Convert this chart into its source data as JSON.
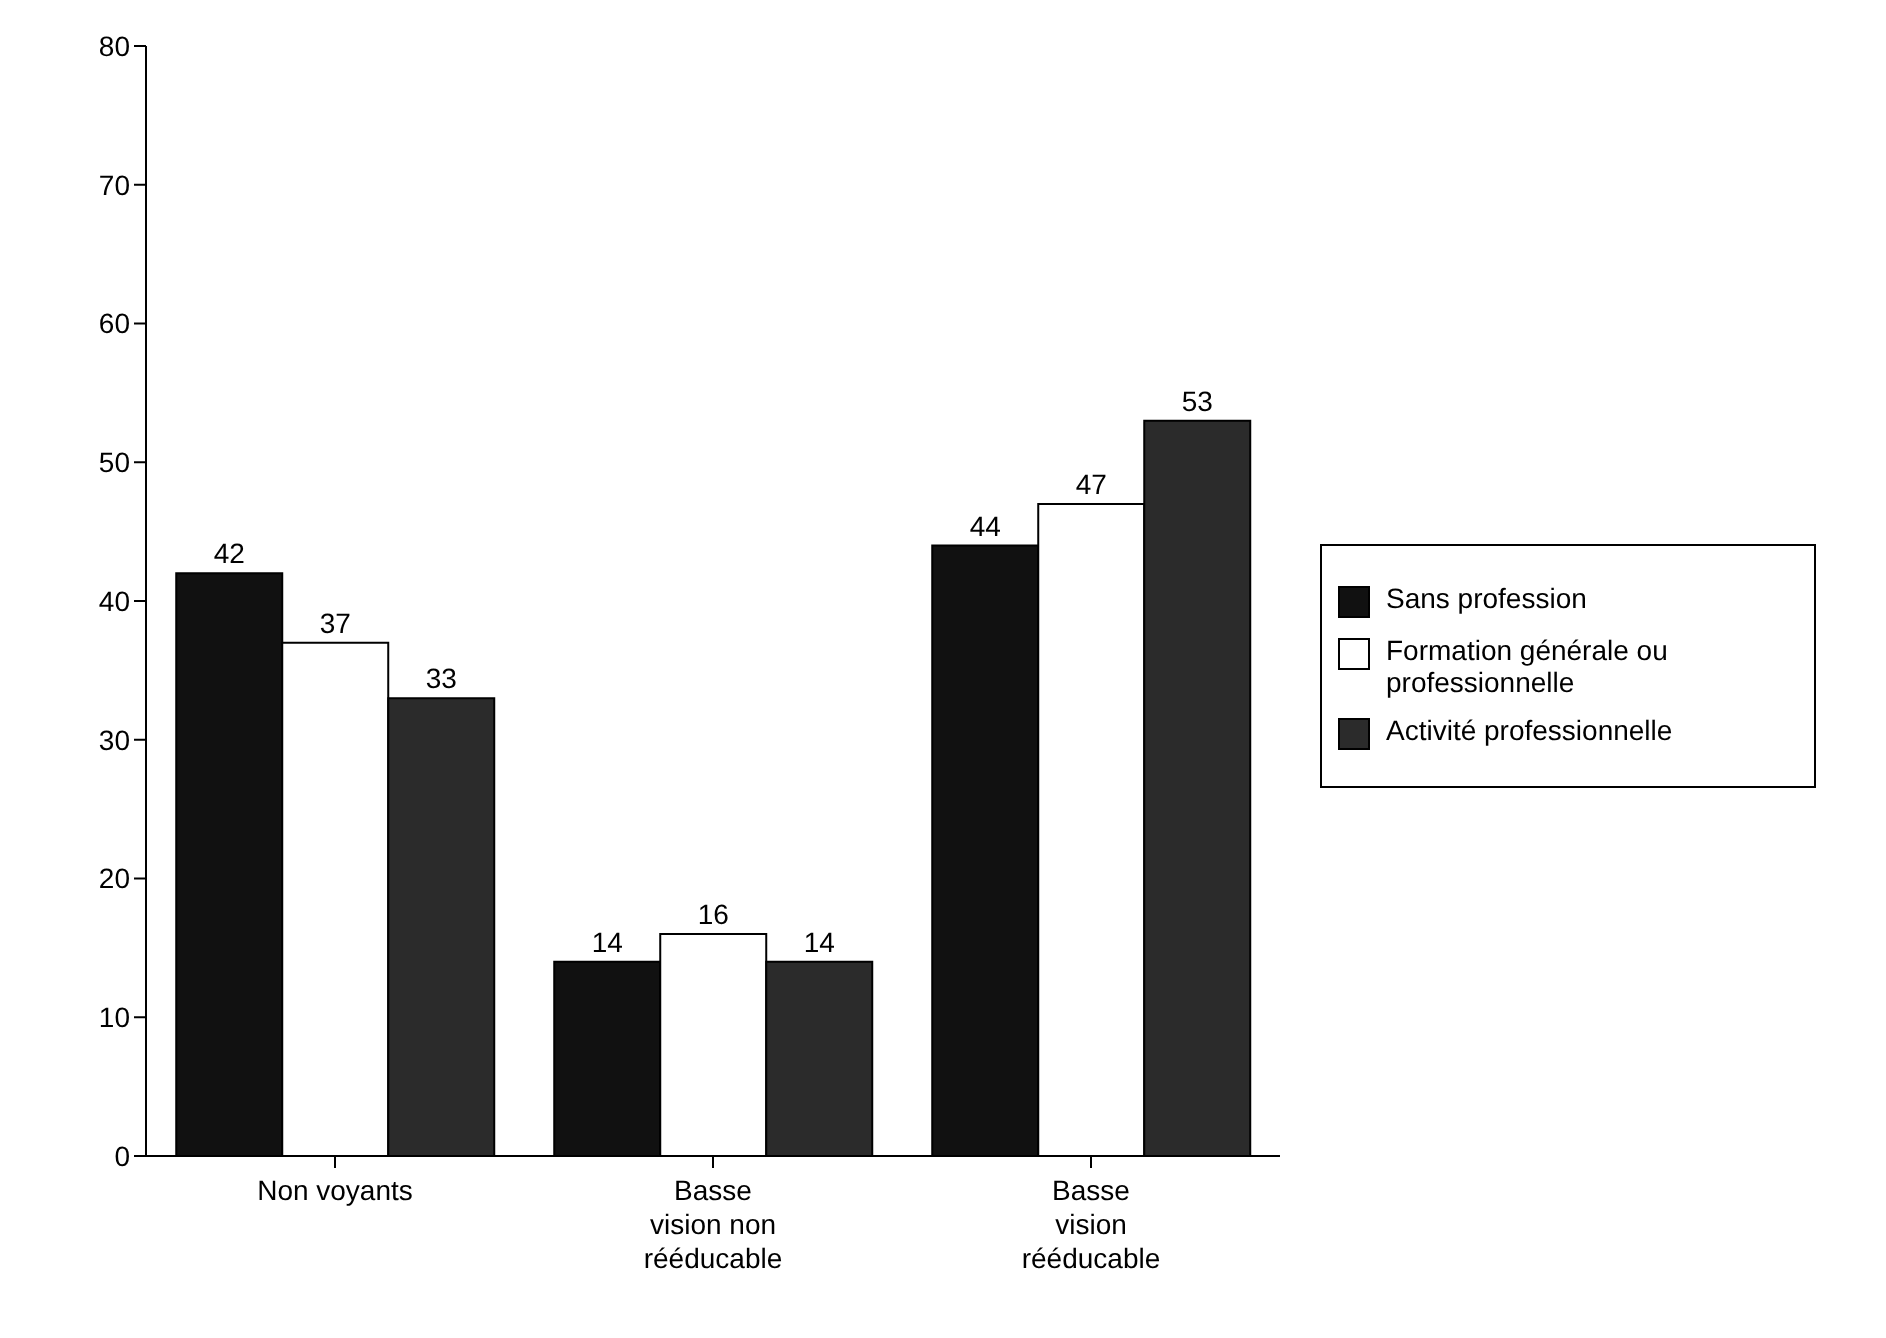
{
  "chart_data": {
    "type": "bar",
    "categories": [
      "Non voyants",
      "Basse vision non rééducable",
      "Basse vision rééducable"
    ],
    "series": [
      {
        "name": "Sans profession",
        "color": "#111111",
        "values": [
          42,
          14,
          44
        ]
      },
      {
        "name": "Formation générale ou professionnelle",
        "color": "#ffffff",
        "values": [
          37,
          16,
          47
        ]
      },
      {
        "name": "Activité professionnelle",
        "color": "#2b2b2b",
        "values": [
          33,
          14,
          53
        ]
      }
    ],
    "ylim": [
      0,
      80
    ],
    "yticks": [
      0,
      10,
      20,
      30,
      40,
      50,
      60,
      70,
      80
    ],
    "grid": false,
    "legend": "right",
    "data_labels": true
  }
}
